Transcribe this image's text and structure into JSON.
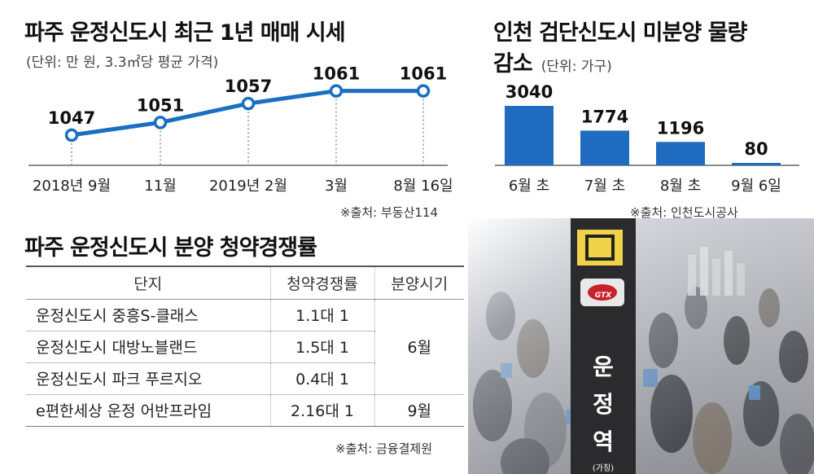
{
  "line_panel": {
    "title": "파주 운정신도시 최근 1년 매매 시세",
    "unit": "(단위: 만 원, 3.3㎡당 평균 가격)",
    "source": "※출처: 부동산114"
  },
  "bar_panel": {
    "title_line1": "인천 검단신도시 미분양  물량",
    "title_line2": "감소",
    "unit": "(단위: 가구)",
    "source": "※출처: 인천도시공사"
  },
  "table_panel": {
    "title": "파주 운정신도시 분양 청약경쟁률",
    "headers": [
      "단지",
      "청약경쟁률",
      "분양시기"
    ],
    "rows": [
      {
        "name": "운정신도시 중흥S-클래스",
        "rate": "1.1대 1"
      },
      {
        "name": "운정신도시 대방노블랜드",
        "rate": "1.5대 1"
      },
      {
        "name": "운정신도시 파크 푸르지오",
        "rate": "0.4대 1"
      },
      {
        "name": "e편한세상 운정 어반프라임",
        "rate": "2.16대 1"
      }
    ],
    "period_group1": "6월",
    "period_group2": "9월",
    "source": "※출처: 금융결제원"
  },
  "photo": {
    "station_char": "운 정 역",
    "station_sub": "(가칭)",
    "gtx_label": "GTX"
  },
  "colors": {
    "accent": "#1a6fc1",
    "bar": "#1f6cc0"
  },
  "chart_data": [
    {
      "type": "line",
      "title": "파주 운정신도시 최근 1년 매매 시세",
      "categories": [
        "2018년 9월",
        "11월",
        "2019년 2월",
        "3월",
        "8월 16일"
      ],
      "values": [
        1047,
        1051,
        1057,
        1061,
        1061
      ],
      "ylim": [
        1040,
        1064
      ]
    },
    {
      "type": "bar",
      "title": "인천 검단신도시 미분양  물량 감소",
      "categories": [
        "6월 초",
        "7월 초",
        "8월 초",
        "9월 6일"
      ],
      "values": [
        3040,
        1774,
        1196,
        80
      ],
      "ylim": [
        0,
        3040
      ]
    }
  ]
}
